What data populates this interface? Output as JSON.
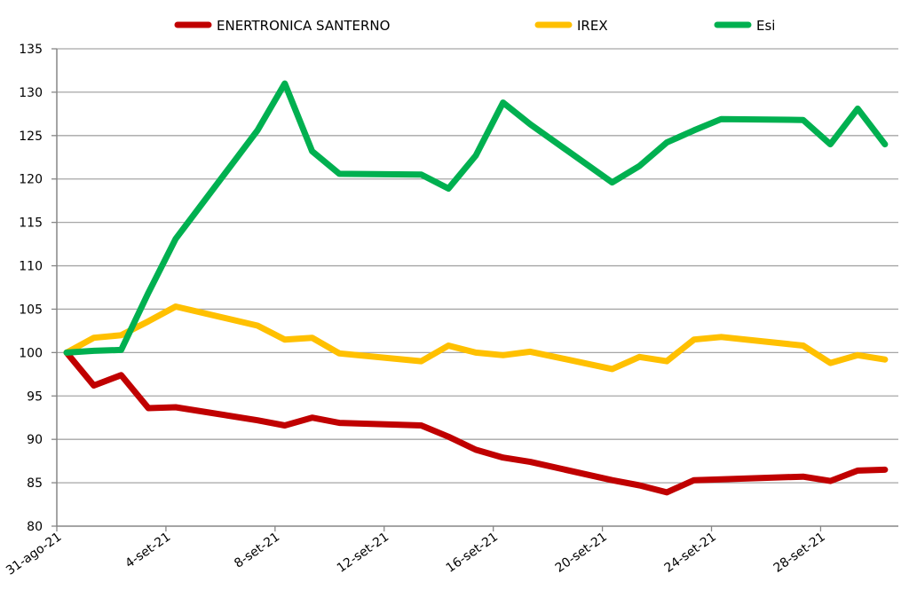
{
  "chart_data": {
    "type": "line",
    "title": "",
    "xlabel": "",
    "ylabel": "",
    "ylim": [
      80,
      135
    ],
    "ytick_step": 5,
    "grid": "horizontal",
    "legend_position": "top",
    "x_start_date": "31-ago-21",
    "x_day_range": [
      0,
      30
    ],
    "x_ticks": [
      {
        "day": 0,
        "label": "31-ago-21"
      },
      {
        "day": 4,
        "label": "4-set-21"
      },
      {
        "day": 8,
        "label": "8-set-21"
      },
      {
        "day": 12,
        "label": "12-set-21"
      },
      {
        "day": 16,
        "label": "16-set-21"
      },
      {
        "day": 20,
        "label": "20-set-21"
      },
      {
        "day": 24,
        "label": "24-set-21"
      },
      {
        "day": 28,
        "label": "28-set-21"
      }
    ],
    "y_ticks": [
      "80",
      "85",
      "90",
      "95",
      "100",
      "105",
      "110",
      "115",
      "120",
      "125",
      "130",
      "135"
    ],
    "x": [
      0,
      1,
      2,
      3,
      4,
      7,
      8,
      9,
      10,
      13,
      14,
      15,
      16,
      17,
      20,
      21,
      22,
      23,
      24,
      27,
      28,
      29,
      30
    ],
    "series": [
      {
        "name": "ENERTRONICA SANTERNO",
        "color": "#C00000",
        "values": [
          100,
          96.2,
          97.4,
          93.6,
          93.7,
          92.2,
          91.6,
          92.5,
          91.9,
          91.6,
          90.3,
          88.8,
          87.9,
          87.4,
          85.3,
          84.7,
          83.9,
          85.3,
          85.4,
          85.7,
          85.2,
          86.4,
          86.5
        ]
      },
      {
        "name": "IREX",
        "color": "#FFC000",
        "values": [
          100,
          101.7,
          102.0,
          103.6,
          105.3,
          103.1,
          101.5,
          101.7,
          99.9,
          99.0,
          100.8,
          100.0,
          99.7,
          100.1,
          98.1,
          99.5,
          99.0,
          101.5,
          101.8,
          100.8,
          98.8,
          99.7,
          99.2
        ]
      },
      {
        "name": "Esi",
        "color": "#00B050",
        "values": [
          100,
          100.2,
          100.3,
          106.9,
          113.1,
          125.6,
          131.0,
          123.2,
          120.6,
          120.5,
          118.9,
          122.7,
          128.8,
          126.3,
          119.6,
          121.5,
          124.2,
          125.6,
          126.9,
          126.8,
          124.0,
          128.1,
          124.0
        ]
      }
    ]
  }
}
